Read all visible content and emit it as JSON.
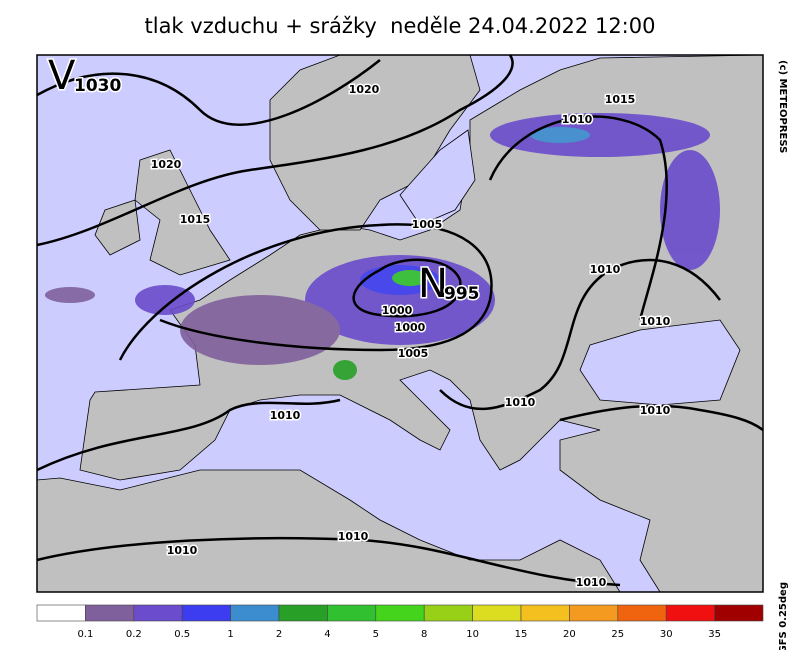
{
  "title": "tlak vzduchu + srážky  neděle 24.04.2022 12:00",
  "pressure_centers": [
    {
      "letter": "V",
      "value": 1030
    },
    {
      "letter": "N",
      "value": 995
    }
  ],
  "isobar_labels": [
    1020,
    1020,
    1015,
    1015,
    1010,
    1005,
    1010,
    1010,
    1000,
    1000,
    1005,
    1010,
    1010,
    1010,
    1010,
    1010,
    1010
  ],
  "legend": {
    "colors": [
      "#ffffff",
      "#80609c",
      "#6a4ccc",
      "#3c3cf0",
      "#3c8cd0",
      "#28a028",
      "#30c030",
      "#44d41c",
      "#98d018",
      "#dcdc20",
      "#f4c020",
      "#f49a20",
      "#f06410",
      "#f01010",
      "#a00000"
    ],
    "labels": [
      0.1,
      0.2,
      0.5,
      1,
      2,
      4,
      5,
      8,
      10,
      15,
      20,
      25,
      30,
      35
    ]
  },
  "credits": [
    "(c) METEOPRESS",
    "GFS 0.25deg"
  ]
}
